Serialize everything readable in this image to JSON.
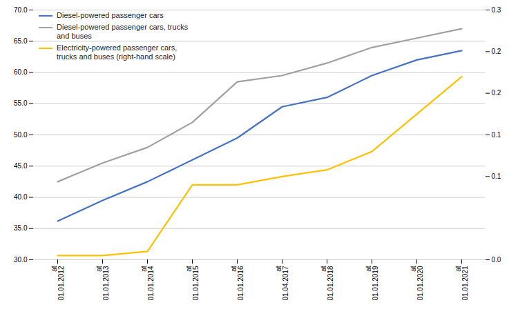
{
  "chart_data": {
    "type": "line",
    "categories": [
      "at\n01.01.2012",
      "at\n01.01.2013",
      "at\n01.01.2014",
      "at\n01.01.2015",
      "at\n01.01.2016",
      "at\n01.04.2017",
      "at\n01.01.2018",
      "at\n01.01.2019",
      "at\n01.01.2020",
      "at\n01.01.2021"
    ],
    "series": [
      {
        "name": "Diesel-powered passenger cars",
        "color": "#4472C4",
        "values": [
          36.2,
          39.5,
          42.5,
          46.0,
          49.5,
          54.5,
          56.0,
          59.5,
          62.0,
          63.5
        ]
      },
      {
        "name": "Diesel-powered passenger cars, trucks\nand buses",
        "color": "#A0A0A0",
        "values": [
          42.5,
          45.5,
          48.0,
          52.0,
          58.5,
          59.5,
          61.5,
          64.0,
          65.5,
          67.0
        ]
      },
      {
        "name": "Electricity-powered passenger cars,\ntrucks and buses (right-hand scale)",
        "color": "#FFC000",
        "axis": "y2",
        "values": [
          0.005,
          0.005,
          0.01,
          0.09,
          0.09,
          0.1,
          0.108,
          0.13,
          0.175,
          0.22
        ]
      }
    ],
    "ylim": [
      30.0,
      70.0
    ],
    "yticks": [
      {
        "value": 30,
        "label": "30.0"
      },
      {
        "value": 35,
        "label": "35.0"
      },
      {
        "value": 40,
        "label": "40.0"
      },
      {
        "value": 45,
        "label": "45.0"
      },
      {
        "value": 50,
        "label": "50.0"
      },
      {
        "value": 55,
        "label": "55.0"
      },
      {
        "value": 60,
        "label": "60.0"
      },
      {
        "value": 65,
        "label": "65.0"
      },
      {
        "value": 70,
        "label": "70.0"
      }
    ],
    "y2lim": [
      0.0,
      0.3
    ],
    "y2ticks": [
      {
        "value": 0,
        "label": "0.0"
      },
      0.1,
      {
        "value": 0.15,
        "label": "0.1"
      },
      0.2,
      {
        "value": 0.25,
        "label": "0.2"
      },
      0.3
    ],
    "grid": true,
    "legend": "upper left"
  }
}
